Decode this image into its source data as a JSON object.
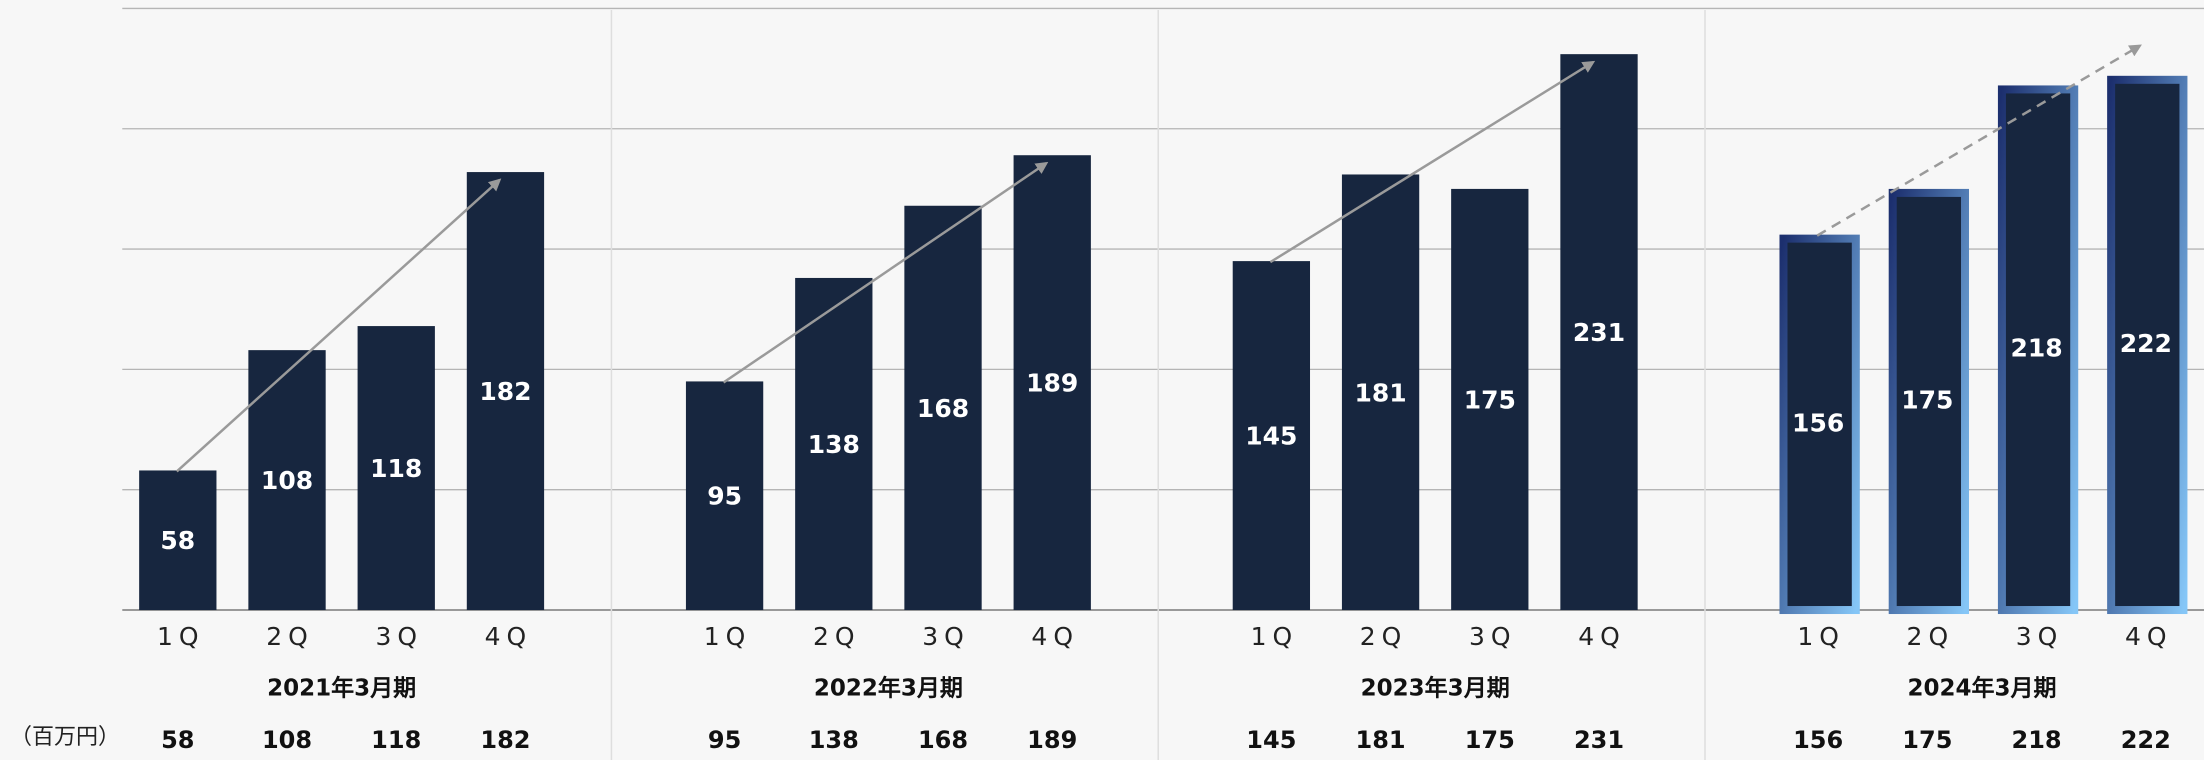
{
  "chart_data": {
    "type": "bar",
    "unit_label": "（百万円）",
    "ylim": [
      0,
      250
    ],
    "yticks": [
      0,
      50,
      100,
      150,
      200,
      250
    ],
    "grid": true,
    "color": "#17263f",
    "groups": [
      {
        "name": "2021年3月期",
        "categories": [
          "1Q",
          "2Q",
          "3Q",
          "4Q"
        ],
        "values": [
          58,
          108,
          118,
          182
        ],
        "trend": "solid"
      },
      {
        "name": "2022年3月期",
        "categories": [
          "1Q",
          "2Q",
          "3Q",
          "4Q"
        ],
        "values": [
          95,
          138,
          168,
          189
        ],
        "trend": "solid"
      },
      {
        "name": "2023年3月期",
        "categories": [
          "1Q",
          "2Q",
          "3Q",
          "4Q"
        ],
        "values": [
          145,
          181,
          175,
          231
        ],
        "trend": "solid"
      },
      {
        "name": "2024年3月期",
        "categories": [
          "1Q",
          "2Q",
          "3Q",
          "4Q"
        ],
        "values": [
          156,
          175,
          218,
          222
        ],
        "trend": "dashed",
        "border_colors": [
          "#1c2f6e",
          "#85c6f7"
        ]
      }
    ]
  }
}
